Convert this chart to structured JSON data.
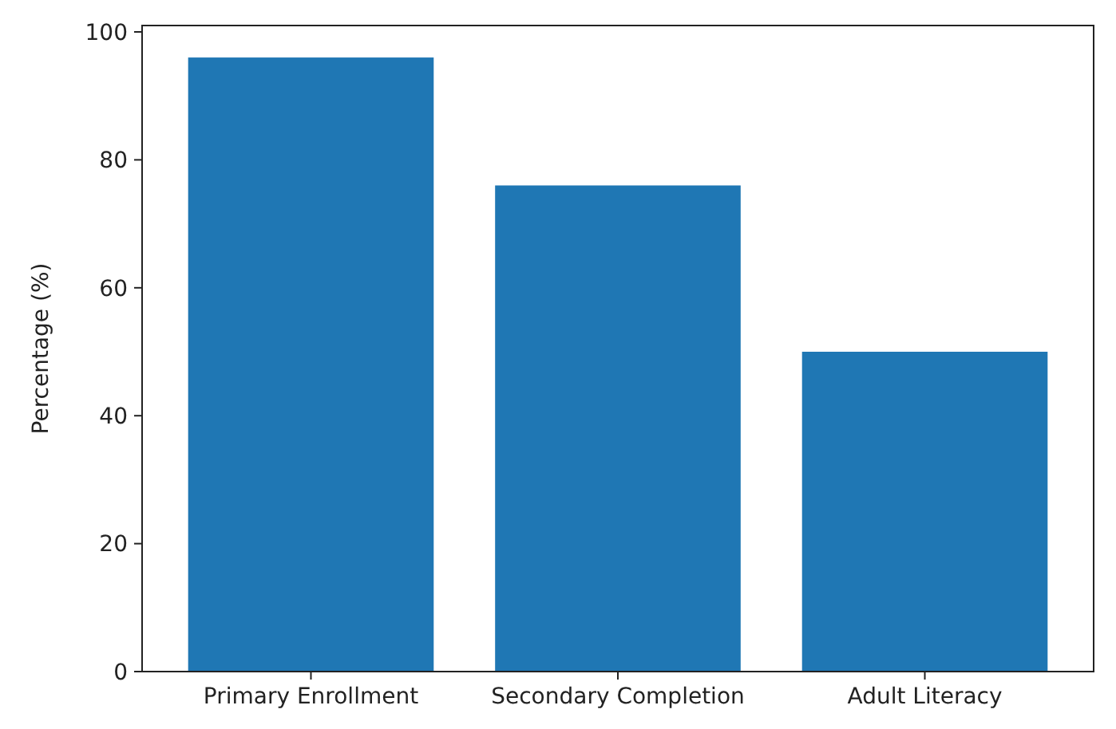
{
  "chart_data": {
    "type": "bar",
    "ylabel": "Percentage (%)",
    "categories": [
      "Primary Enrollment",
      "Secondary Completion",
      "Adult Literacy"
    ],
    "values": [
      96,
      76,
      50
    ],
    "color": "#1f77b4",
    "ylim": [
      0,
      101
    ],
    "yticks": [
      0,
      20,
      40,
      60,
      80,
      100
    ],
    "grid": false
  }
}
